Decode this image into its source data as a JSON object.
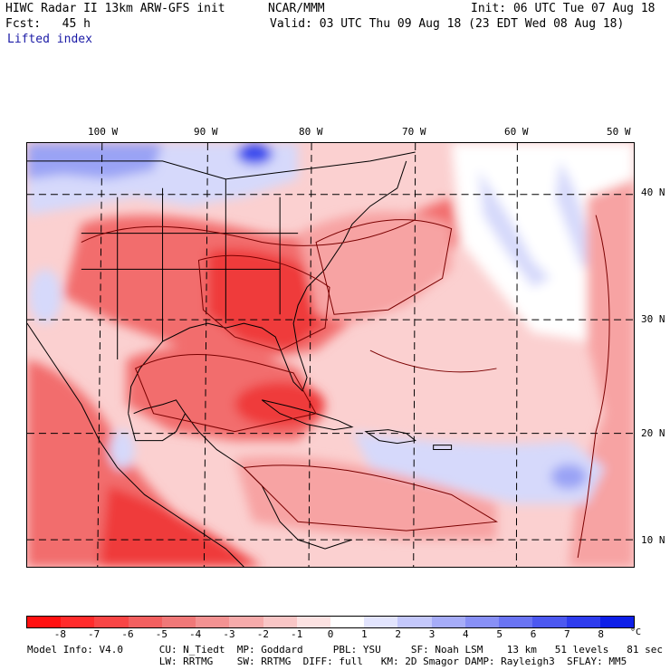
{
  "header": {
    "model_title": "HIWC Radar II 13km ARW-GFS init",
    "org": "NCAR/MMM",
    "init_time": "Init: 06 UTC Tue 07 Aug 18",
    "forecast_hour": "Fcst:   45 h",
    "valid_time": "Valid: 03 UTC Thu 09 Aug 18 (23 EDT Wed 08 Aug 18)",
    "field_name": "Lifted index"
  },
  "map": {
    "lon_labels": [
      "100 W",
      "90 W",
      "80 W",
      "70 W",
      "60 W",
      "50 W"
    ],
    "lat_labels": [
      "40 N",
      "30 N",
      "20 N",
      "10 N"
    ],
    "palette": {
      "red_strong": "#ef3b3b",
      "red_mid": "#f26d6d",
      "red_light": "#f7a3a3",
      "pink": "#fbd0d0",
      "white": "#ffffff",
      "blue_light": "#d6d9fb",
      "blue_mid": "#9aa3f5",
      "blue_strong": "#3948ee"
    }
  },
  "colorbar": {
    "labels": [
      "-8",
      "-7",
      "-6",
      "-5",
      "-4",
      "-3",
      "-2",
      "-1",
      "0",
      "1",
      "2",
      "3",
      "4",
      "5",
      "6",
      "7",
      "8"
    ],
    "unit": "°C",
    "colors": [
      "#ff1010",
      "#ff2b2b",
      "#f84545",
      "#f25f5f",
      "#f07878",
      "#f39292",
      "#f6abab",
      "#f9c6c6",
      "#fce2e2",
      "#ffffff",
      "#e2e4fd",
      "#c4c8fb",
      "#a6acf8",
      "#8890f6",
      "#6a74f3",
      "#4c58f0",
      "#2e3cee",
      "#0e1fe8"
    ]
  },
  "footer": {
    "line1": "Model Info: V4.0      CU: N_Tiedt  MP: Goddard     PBL: YSU     SF: Noah LSM    13 km   51 levels   81 sec",
    "line2": "                      LW: RRTMG    SW: RRTMG  DIFF: full   KM: 2D Smagor DAMP: Rayleigh3  SFLAY: MM5"
  }
}
